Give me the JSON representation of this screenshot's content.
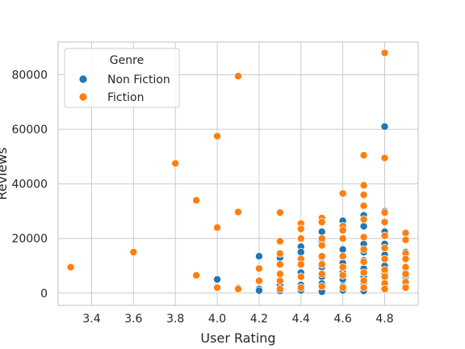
{
  "chart_data": {
    "type": "scatter",
    "title": "",
    "xlabel": "User Rating",
    "ylabel": "Reviews",
    "xlim": [
      3.24,
      4.96
    ],
    "ylim": [
      -4500,
      92000
    ],
    "xticks": [
      3.4,
      3.6,
      3.8,
      4.0,
      4.2,
      4.4,
      4.6,
      4.8
    ],
    "xtick_labels": [
      "3.4",
      "3.6",
      "3.8",
      "4.0",
      "4.2",
      "4.4",
      "4.6",
      "4.8"
    ],
    "yticks": [
      0,
      20000,
      40000,
      60000,
      80000
    ],
    "ytick_labels": [
      "0",
      "20000",
      "40000",
      "60000",
      "80000"
    ],
    "grid": true,
    "legend": {
      "title": "Genre",
      "placement": "top-left"
    },
    "series": [
      {
        "name": "Non Fiction",
        "color": "#1f77b4",
        "points": [
          [
            4.0,
            5000
          ],
          [
            4.1,
            2000
          ],
          [
            4.1,
            1800
          ],
          [
            4.2,
            13500
          ],
          [
            4.2,
            1500
          ],
          [
            4.2,
            900
          ],
          [
            4.3,
            13000
          ],
          [
            4.3,
            7000
          ],
          [
            4.3,
            3000
          ],
          [
            4.3,
            800
          ],
          [
            4.4,
            17000
          ],
          [
            4.4,
            15000
          ],
          [
            4.4,
            11500
          ],
          [
            4.4,
            7500
          ],
          [
            4.4,
            3000
          ],
          [
            4.4,
            1000
          ],
          [
            4.5,
            26000
          ],
          [
            4.5,
            22500
          ],
          [
            4.5,
            19000
          ],
          [
            4.5,
            13000
          ],
          [
            4.5,
            9500
          ],
          [
            4.5,
            6000
          ],
          [
            4.5,
            3500
          ],
          [
            4.5,
            500
          ],
          [
            4.6,
            26500
          ],
          [
            4.6,
            20000
          ],
          [
            4.6,
            16000
          ],
          [
            4.6,
            11000
          ],
          [
            4.6,
            7500
          ],
          [
            4.6,
            5000
          ],
          [
            4.6,
            2500
          ],
          [
            4.6,
            1000
          ],
          [
            4.7,
            28500
          ],
          [
            4.7,
            24500
          ],
          [
            4.7,
            18000
          ],
          [
            4.7,
            15000
          ],
          [
            4.7,
            12000
          ],
          [
            4.7,
            9000
          ],
          [
            4.7,
            6000
          ],
          [
            4.7,
            3000
          ],
          [
            4.7,
            800
          ],
          [
            4.8,
            61000
          ],
          [
            4.8,
            30000
          ],
          [
            4.8,
            22500
          ],
          [
            4.8,
            18000
          ],
          [
            4.8,
            14000
          ],
          [
            4.8,
            10000
          ],
          [
            4.8,
            7000
          ],
          [
            4.8,
            4000
          ],
          [
            4.8,
            1500
          ],
          [
            4.9,
            15000
          ],
          [
            4.9,
            9000
          ],
          [
            4.9,
            6000
          ],
          [
            4.9,
            4500
          ],
          [
            4.9,
            3000
          ]
        ]
      },
      {
        "name": "Fiction",
        "color": "#ff7f0e",
        "points": [
          [
            3.3,
            9500
          ],
          [
            3.6,
            15000
          ],
          [
            3.8,
            47500
          ],
          [
            3.9,
            34000
          ],
          [
            3.9,
            6500
          ],
          [
            4.0,
            57500
          ],
          [
            4.0,
            24000
          ],
          [
            4.0,
            2000
          ],
          [
            4.1,
            79500
          ],
          [
            4.1,
            29700
          ],
          [
            4.1,
            1500
          ],
          [
            4.2,
            9000
          ],
          [
            4.2,
            4500
          ],
          [
            4.3,
            29500
          ],
          [
            4.3,
            19000
          ],
          [
            4.3,
            14500
          ],
          [
            4.3,
            10500
          ],
          [
            4.3,
            7000
          ],
          [
            4.3,
            4500
          ],
          [
            4.3,
            1500
          ],
          [
            4.4,
            25500
          ],
          [
            4.4,
            23500
          ],
          [
            4.4,
            20000
          ],
          [
            4.4,
            12500
          ],
          [
            4.4,
            10500
          ],
          [
            4.4,
            6000
          ],
          [
            4.4,
            2000
          ],
          [
            4.5,
            27500
          ],
          [
            4.5,
            26000
          ],
          [
            4.5,
            20000
          ],
          [
            4.5,
            17500
          ],
          [
            4.5,
            13500
          ],
          [
            4.5,
            10500
          ],
          [
            4.5,
            7000
          ],
          [
            4.5,
            2500
          ],
          [
            4.6,
            36500
          ],
          [
            4.6,
            24500
          ],
          [
            4.6,
            23000
          ],
          [
            4.6,
            20000
          ],
          [
            4.6,
            13500
          ],
          [
            4.6,
            9500
          ],
          [
            4.6,
            6500
          ],
          [
            4.6,
            2000
          ],
          [
            4.7,
            50500
          ],
          [
            4.7,
            39500
          ],
          [
            4.7,
            36000
          ],
          [
            4.7,
            32000
          ],
          [
            4.7,
            27000
          ],
          [
            4.7,
            20500
          ],
          [
            4.7,
            16000
          ],
          [
            4.7,
            11500
          ],
          [
            4.7,
            7500
          ],
          [
            4.7,
            4500
          ],
          [
            4.7,
            2000
          ],
          [
            4.8,
            88000
          ],
          [
            4.8,
            49500
          ],
          [
            4.8,
            29500
          ],
          [
            4.8,
            26000
          ],
          [
            4.8,
            21000
          ],
          [
            4.8,
            16500
          ],
          [
            4.8,
            12500
          ],
          [
            4.8,
            8500
          ],
          [
            4.8,
            6000
          ],
          [
            4.8,
            3500
          ],
          [
            4.8,
            1500
          ],
          [
            4.9,
            22000
          ],
          [
            4.9,
            19500
          ],
          [
            4.9,
            14500
          ],
          [
            4.9,
            12500
          ],
          [
            4.9,
            9500
          ],
          [
            4.9,
            7000
          ],
          [
            4.9,
            4000
          ],
          [
            4.9,
            2000
          ]
        ]
      }
    ]
  }
}
